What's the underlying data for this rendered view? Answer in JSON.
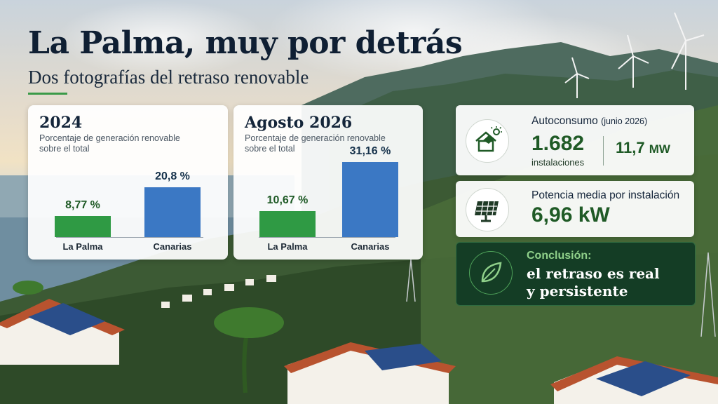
{
  "header": {
    "title": "La Palma, muy por detrás",
    "subtitle": "Dos fotografías del retraso renovable"
  },
  "colors": {
    "green_bar": "#2f9a44",
    "blue_bar": "#3b78c4",
    "accent_green": "#1f5a26",
    "conclusion_bg": "#103a24"
  },
  "panel_2024": {
    "title": "2024",
    "description": "Porcentaje de generación renovable sobre el total"
  },
  "panel_2026": {
    "title": "Agosto 2026",
    "description": "Porcentaje de generación renovable sobre el total"
  },
  "chart_data": [
    {
      "type": "bar",
      "title": "2024",
      "categories": [
        "La Palma",
        "Canarias"
      ],
      "values": [
        8.77,
        20.8
      ],
      "value_labels": [
        "8,77 %",
        "20,8 %"
      ],
      "colors": [
        "#2f9a44",
        "#3b78c4"
      ],
      "ylim": [
        0,
        32
      ]
    },
    {
      "type": "bar",
      "title": "Agosto 2026",
      "categories": [
        "La Palma",
        "Canarias"
      ],
      "values": [
        10.67,
        31.16
      ],
      "value_labels": [
        "10,67 %",
        "31,16 %"
      ],
      "colors": [
        "#2f9a44",
        "#3b78c4"
      ],
      "ylim": [
        0,
        32
      ]
    }
  ],
  "autoconsumo": {
    "heading": "Autoconsumo",
    "heading_note": "(junio 2026)",
    "installations_value": "1.682",
    "installations_label": "instalaciones",
    "power_value": "11,7",
    "power_unit": "MW",
    "icon": "solar-house-icon"
  },
  "potencia": {
    "heading": "Potencia media por instalación",
    "value": "6,96 kW",
    "icon": "solar-panel-icon"
  },
  "conclusion": {
    "label": "Conclusión:",
    "text_line1": "el retraso es real",
    "text_line2": "y persistente",
    "icon": "leaf-icon"
  }
}
